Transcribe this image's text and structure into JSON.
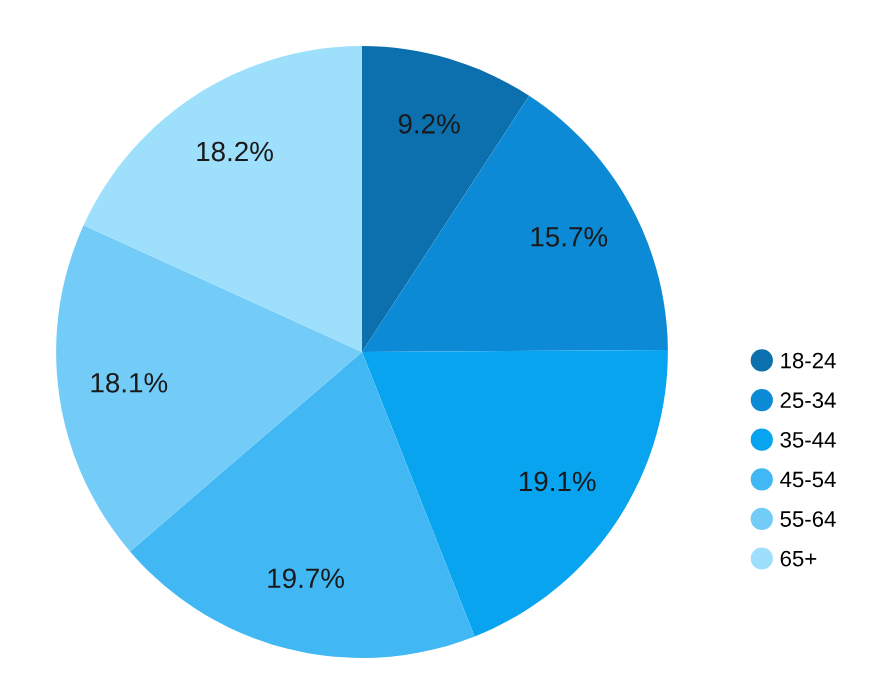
{
  "chart_data": {
    "type": "pie",
    "categories": [
      "18-24",
      "25-34",
      "35-44",
      "45-54",
      "55-64",
      "65+"
    ],
    "values": [
      9.2,
      15.7,
      19.1,
      19.7,
      18.1,
      18.2
    ],
    "colors": [
      "#0b70ad",
      "#0c8ad6",
      "#09a4f0",
      "#41b8f4",
      "#73ccf8",
      "#9edffc"
    ],
    "value_labels": [
      "9.2%",
      "15.7%",
      "19.1%",
      "19.7%",
      "18.1%",
      "18.2%"
    ],
    "legend": "right"
  }
}
